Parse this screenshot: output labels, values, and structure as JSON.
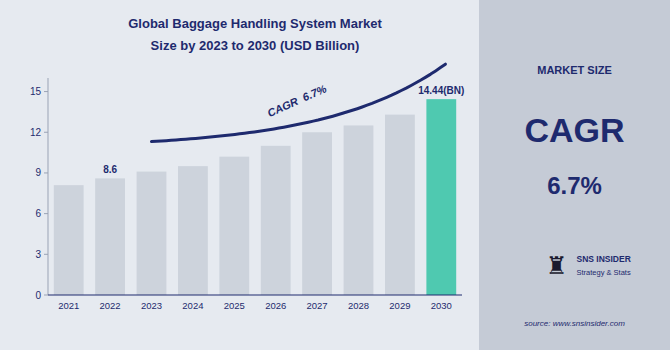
{
  "chart_data": {
    "type": "bar",
    "title": "Global Baggage Handling System Market",
    "subtitle": "Size by 2023 to 2030 (USD Billion)",
    "categories": [
      "2021",
      "2022",
      "2023",
      "2024",
      "2025",
      "2026",
      "2027",
      "2028",
      "2029",
      "2030"
    ],
    "values": [
      8.1,
      8.6,
      9.1,
      9.5,
      10.2,
      11.0,
      12.0,
      12.5,
      13.3,
      14.44
    ],
    "value_labels": [
      null,
      "8.6",
      null,
      null,
      null,
      null,
      null,
      null,
      null,
      "14.44(BN)"
    ],
    "colors": [
      "#cdd3dc",
      "#cdd3dc",
      "#cdd3dc",
      "#cdd3dc",
      "#cdd3dc",
      "#cdd3dc",
      "#cdd3dc",
      "#cdd3dc",
      "#cdd3dc",
      "#4fc9b0"
    ],
    "ylim": [
      0,
      16
    ],
    "yticks": [
      0,
      3,
      6,
      9,
      12,
      15
    ],
    "grid": false,
    "annotations": [
      "CAGR  6.7%",
      "MARKET SIZE",
      "CAGR",
      "6.7%",
      "♜",
      "SNS INSIDER",
      "Strategy & Stats",
      "source: www.snsinsider.com"
    ]
  }
}
